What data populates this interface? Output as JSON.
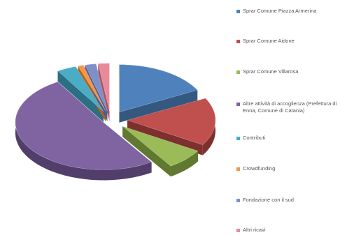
{
  "chart_data": {
    "type": "pie",
    "style": "3d-exploded",
    "legend_position": "right",
    "slices": [
      {
        "label": "Sprar Comune Piazza Armerina",
        "value": 17.0,
        "color": "#4f81bd",
        "dark": "#34587f"
      },
      {
        "label": "Sprar Comune Aidone",
        "value": 16.0,
        "color": "#c0504d",
        "dark": "#7d302d"
      },
      {
        "label": "Sprar Comune Villarosa",
        "value": 7.0,
        "color": "#9bbb59",
        "dark": "#60782f"
      },
      {
        "label": "Altre attività di accoglienza (Prefettura di Enna, Comune di Catania)",
        "value": 49.5,
        "color": "#8064a2",
        "dark": "#523e6b"
      },
      {
        "label": "Contributi",
        "value": 3.5,
        "color": "#4bacc6",
        "dark": "#2b6f82"
      },
      {
        "label": "Crowdfunding",
        "value": 1.0,
        "color": "#f79646",
        "dark": "#b0611f"
      },
      {
        "label": "Fondazione con il sud",
        "value": 2.0,
        "color": "#7f8fc8",
        "dark": "#4f5c8e"
      },
      {
        "label": "Altri ricavi",
        "value": 2.0,
        "color": "#e88a9a",
        "dark": "#a75563"
      }
    ]
  }
}
